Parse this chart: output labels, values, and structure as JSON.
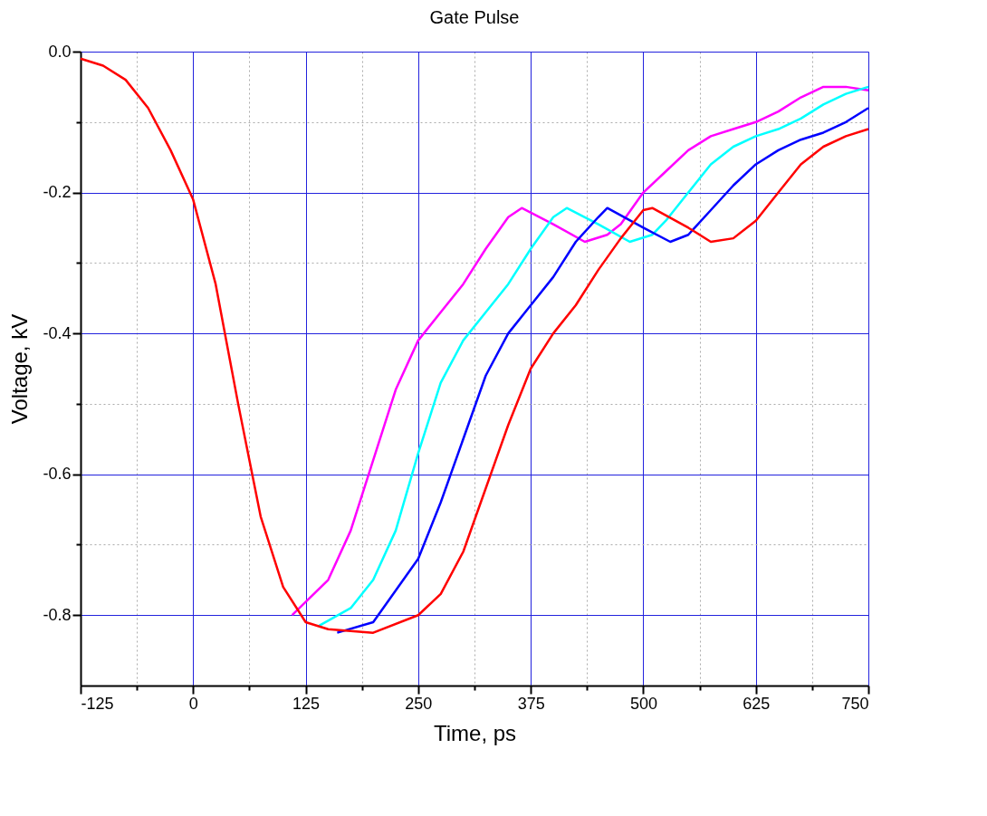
{
  "chart_data": {
    "type": "line",
    "title": "Gate Pulse",
    "xlabel": "Time, ps",
    "ylabel": "Voltage, kV",
    "xlim": [
      -125,
      750
    ],
    "ylim": [
      -0.9,
      0
    ],
    "xticks": [
      -125,
      {
        "value": -62.5,
        "label": null
      },
      {
        "value": 0,
        "label": "0"
      },
      {
        "value": 62.5,
        "label": null
      },
      125,
      {
        "value": 187.5,
        "label": null
      },
      250,
      {
        "value": 312.5,
        "label": null
      },
      375,
      {
        "value": 437.5,
        "label": null
      },
      500,
      {
        "value": 562.5,
        "label": null
      },
      625,
      {
        "value": 687.5,
        "label": null
      },
      750
    ],
    "yticks": [
      {
        "value": 0,
        "label": "0.0"
      },
      {
        "value": -0.1,
        "label": null
      },
      {
        "value": -0.2,
        "label": "-0.2"
      },
      {
        "value": -0.3,
        "label": null
      },
      {
        "value": -0.4,
        "label": "-0.4"
      },
      {
        "value": -0.5,
        "label": null
      },
      {
        "value": -0.6,
        "label": "-0.6"
      },
      {
        "value": -0.7,
        "label": null
      },
      {
        "value": -0.8,
        "label": "-0.8"
      }
    ],
    "grid": true,
    "marker": "none",
    "line_style": "solid",
    "series": [
      {
        "color": "#ff00ff",
        "x": [
          110,
          150,
          175,
          200,
          225,
          250,
          275,
          300,
          325,
          350,
          365,
          400,
          435,
          460,
          475,
          500,
          525,
          550,
          575,
          600,
          625,
          650,
          675,
          700,
          725,
          750
        ],
        "values": [
          -0.8,
          -0.75,
          -0.68,
          -0.58,
          -0.48,
          -0.41,
          -0.37,
          -0.33,
          -0.28,
          -0.235,
          -0.222,
          -0.245,
          -0.27,
          -0.26,
          -0.245,
          -0.2,
          -0.17,
          -0.14,
          -0.12,
          -0.11,
          -0.1,
          -0.085,
          -0.065,
          -0.05,
          -0.05,
          -0.055
        ]
      },
      {
        "color": "#00ffff",
        "x": [
          140,
          175,
          200,
          225,
          250,
          275,
          300,
          325,
          350,
          375,
          400,
          415,
          450,
          485,
          510,
          525,
          550,
          575,
          600,
          625,
          650,
          675,
          700,
          725,
          750
        ],
        "values": [
          -0.815,
          -0.79,
          -0.75,
          -0.68,
          -0.57,
          -0.47,
          -0.41,
          -0.37,
          -0.33,
          -0.28,
          -0.235,
          -0.222,
          -0.245,
          -0.27,
          -0.26,
          -0.24,
          -0.2,
          -0.16,
          -0.135,
          -0.12,
          -0.11,
          -0.095,
          -0.075,
          -0.06,
          -0.05
        ]
      },
      {
        "color": "#0000ff",
        "x": [
          160,
          200,
          250,
          275,
          300,
          325,
          350,
          375,
          400,
          425,
          450,
          460,
          500,
          530,
          550,
          575,
          600,
          625,
          650,
          675,
          700,
          725,
          750
        ],
        "values": [
          -0.825,
          -0.81,
          -0.72,
          -0.64,
          -0.55,
          -0.46,
          -0.4,
          -0.36,
          -0.32,
          -0.27,
          -0.235,
          -0.222,
          -0.25,
          -0.27,
          -0.26,
          -0.225,
          -0.19,
          -0.16,
          -0.14,
          -0.125,
          -0.115,
          -0.1,
          -0.08
        ]
      },
      {
        "color": "#ff0000",
        "x": [
          -125,
          -100,
          -75,
          -50,
          -25,
          0,
          25,
          50,
          75,
          100,
          125,
          150,
          200,
          250,
          275,
          300,
          325,
          350,
          375,
          400,
          425,
          450,
          475,
          500,
          510,
          550,
          575,
          600,
          625,
          650,
          675,
          700,
          725,
          750
        ],
        "values": [
          -0.01,
          -0.02,
          -0.04,
          -0.08,
          -0.14,
          -0.21,
          -0.33,
          -0.5,
          -0.66,
          -0.76,
          -0.81,
          -0.82,
          -0.825,
          -0.8,
          -0.77,
          -0.71,
          -0.62,
          -0.53,
          -0.45,
          -0.4,
          -0.36,
          -0.31,
          -0.265,
          -0.225,
          -0.222,
          -0.25,
          -0.27,
          -0.265,
          -0.24,
          -0.2,
          -0.16,
          -0.135,
          -0.12,
          -0.11
        ]
      }
    ]
  }
}
